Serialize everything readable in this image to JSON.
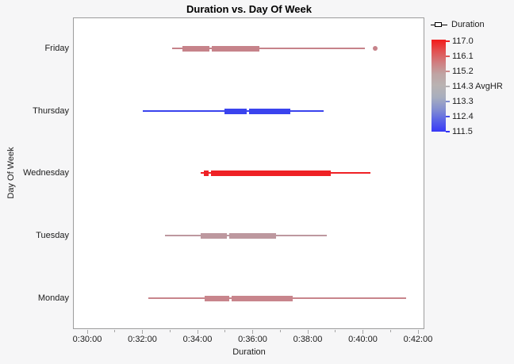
{
  "title": "Duration vs. Day Of Week",
  "axes": {
    "x_label": "Duration",
    "y_label": "Day Of Week",
    "x_ticks": [
      "0:30:00",
      "0:32:00",
      "0:34:00",
      "0:36:00",
      "0:38:00",
      "0:40:00",
      "0:42:00"
    ],
    "y_categories": [
      "Friday",
      "Thursday",
      "Wednesday",
      "Tuesday",
      "Monday"
    ]
  },
  "legend": {
    "series_label": "Duration",
    "gradient_label": "AvgHR",
    "gradient_label_at": "114.3",
    "gradient_ticks": [
      "117.0",
      "116.1",
      "115.2",
      "114.3",
      "113.3",
      "112.4",
      "111.5"
    ],
    "gradient_stops": [
      "#f21b1b",
      "#e25151",
      "#d07e80",
      "#bfa4a4",
      "#b9b3b2",
      "#a8aebe",
      "#8691cf",
      "#5a64e6",
      "#3838f7"
    ],
    "gradient_tick_colors": [
      "#ef2525",
      "#e05a5a",
      "#cf8a8c",
      "#b5b2b4",
      "#7f8bd0",
      "#4950e8",
      "#3434f4"
    ]
  },
  "chart_data": {
    "type": "boxplot-horizontal",
    "title": "Duration vs. Day Of Week",
    "xlabel": "Duration",
    "ylabel": "Day Of Week",
    "x_range": [
      "0:30:00",
      "0:42:00"
    ],
    "x_major_tick_interval_min": 2,
    "x_minor_tick_interval_min": 1,
    "grid": false,
    "legend_position": "top-right",
    "categories": [
      "Friday",
      "Thursday",
      "Wednesday",
      "Tuesday",
      "Monday"
    ],
    "series": [
      {
        "category": "Friday",
        "whisker_low": "0:33:05",
        "q1": "0:33:27",
        "median": "0:34:29",
        "q3": "0:36:15",
        "whisker_high": "0:40:04",
        "outliers": [
          "0:40:27"
        ],
        "avg_hr_color": "#c6838a"
      },
      {
        "category": "Thursday",
        "whisker_low": "0:32:01",
        "q1": "0:34:59",
        "median": "0:35:49",
        "q3": "0:37:22",
        "whisker_high": "0:38:35",
        "outliers": [],
        "avg_hr_color": "#3a43ee"
      },
      {
        "category": "Wednesday",
        "whisker_low": "0:34:07",
        "q1": "0:34:14",
        "median": "0:34:26",
        "q3": "0:38:50",
        "whisker_high": "0:40:16",
        "outliers": [],
        "avg_hr_color": "#ef2125"
      },
      {
        "category": "Tuesday",
        "whisker_low": "0:32:49",
        "q1": "0:34:07",
        "median": "0:35:06",
        "q3": "0:36:51",
        "whisker_high": "0:38:41",
        "outliers": [],
        "avg_hr_color": "#bd989f"
      },
      {
        "category": "Monday",
        "whisker_low": "0:32:13",
        "q1": "0:34:16",
        "median": "0:35:11",
        "q3": "0:37:27",
        "whisker_high": "0:41:34",
        "outliers": [],
        "avg_hr_color": "#c8858c"
      }
    ]
  },
  "colors": {
    "background": "#f6f6f7",
    "plot_background": "#ffffff",
    "plot_border": "#9c9c9c",
    "tick": "#a6a6a6",
    "text": "#1c1c1c"
  }
}
